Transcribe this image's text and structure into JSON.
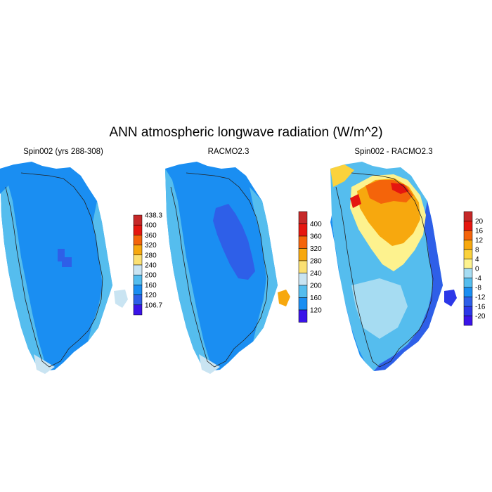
{
  "title": "ANN atmospheric longwave radiation (W/m^2)",
  "panels": [
    {
      "title": "Spin002 (yrs 288-308)",
      "legend": {
        "labels": [
          "438.3",
          "400",
          "360",
          "320",
          "280",
          "240",
          "200",
          "160",
          "120",
          "106.7"
        ],
        "colors": [
          "#c62828",
          "#e5160f",
          "#f4640a",
          "#f7a80e",
          "#fbe072",
          "#c9e4f2",
          "#55bdee",
          "#1a8ef2",
          "#2e5fe8",
          "#3a14e8"
        ]
      }
    },
    {
      "title": "RACMO2.3",
      "legend": {
        "labels": [
          "400",
          "360",
          "320",
          "280",
          "240",
          "200",
          "160",
          "120"
        ],
        "colors": [
          "#c62828",
          "#e5160f",
          "#f4640a",
          "#f7a80e",
          "#fbe072",
          "#c9e4f2",
          "#55bdee",
          "#1a8ef2",
          "#3a14e8"
        ]
      }
    },
    {
      "title": "Spin002 - RACMO2.3",
      "legend": {
        "labels": [
          "20",
          "16",
          "12",
          "8",
          "4",
          "0",
          "-4",
          "-8",
          "-12",
          "-16",
          "-20"
        ],
        "colors": [
          "#c62828",
          "#e5160f",
          "#f4640a",
          "#f7a80e",
          "#fbd23c",
          "#fdf28e",
          "#a6dcf2",
          "#55bdee",
          "#1a8ef2",
          "#2e5fe8",
          "#2c38e8",
          "#3a14e8"
        ]
      }
    }
  ]
}
